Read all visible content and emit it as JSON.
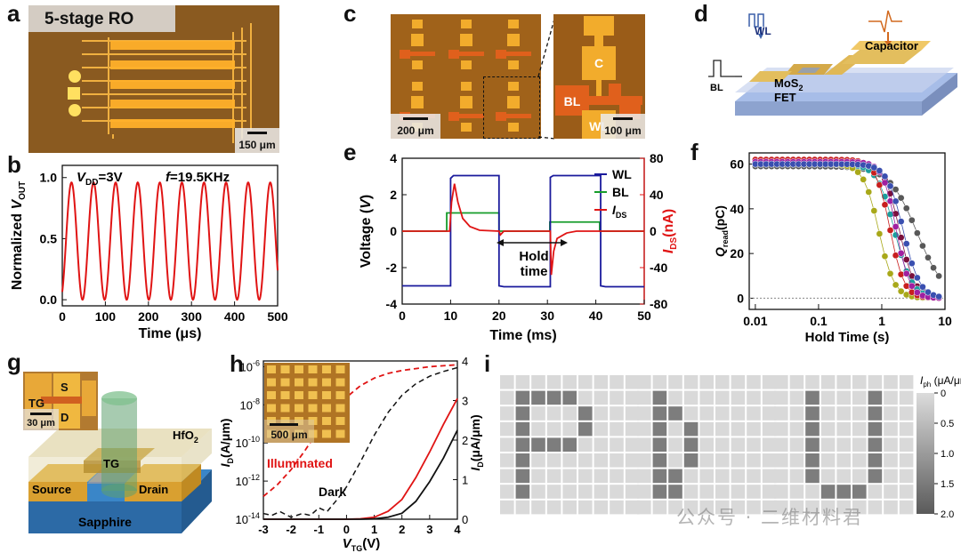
{
  "panels": {
    "a": {
      "label": "a",
      "title": "5-stage RO",
      "scale": "150 μm"
    },
    "b": {
      "label": "b",
      "vdd_text": "=3V",
      "vdd_sym": "V",
      "vdd_sub": "DD",
      "freq_sym": "f",
      "freq_text": "=19.5KHz"
    },
    "c": {
      "label": "c",
      "scale_left": "200 μm",
      "scale_right": "100 μm",
      "pad_c": "C",
      "pad_bl": "BL",
      "pad_wl": "WL"
    },
    "d": {
      "label": "d",
      "wl": "WL",
      "bl": "BL",
      "capacitor": "Capacitor",
      "fet_line1": "MoS",
      "fet_sub": "2",
      "fet_line2": "FET"
    },
    "e": {
      "label": "e",
      "hold_line1": "Hold",
      "hold_line2": "time"
    },
    "f": {
      "label": "f"
    },
    "g": {
      "label": "g",
      "tg": "TG",
      "s": "S",
      "d": "D",
      "scale": "30 μm",
      "hfo2": "HfO",
      "hfo2_sub": "2",
      "tg3d": "TG",
      "source": "Source",
      "drain": "Drain",
      "sapphire": "Sapphire"
    },
    "h": {
      "label": "h",
      "scale": "500 μm",
      "illuminated": "Illuminated",
      "dark": "Dark"
    },
    "i": {
      "label": "i"
    }
  },
  "watermark": "公众号 · 二维材料君",
  "chart_data": [
    {
      "id": "b",
      "type": "line",
      "xlabel": "Time (μs)",
      "ylabel": "Normalized V_OUT",
      "xlim": [
        0,
        500
      ],
      "ylim": [
        -0.05,
        1.1
      ],
      "xticks": [
        0,
        100,
        200,
        300,
        400,
        500
      ],
      "yticks": [
        0.0,
        0.5,
        1.0
      ],
      "ytick_labels": [
        "0.0",
        "0.5",
        "1.0"
      ],
      "series": [
        {
          "color": "#e01414",
          "function": "sine",
          "frequency_khz": 19.5,
          "min": 0.0,
          "max": 0.96,
          "phase_deg": -60
        }
      ]
    },
    {
      "id": "e",
      "type": "line",
      "xlabel": "Time (ms)",
      "ylabel": "Voltage (V)",
      "y2label": "I_DS(nA)",
      "xlim": [
        0,
        50
      ],
      "ylim": [
        -4,
        4
      ],
      "y2lim": [
        -80,
        80
      ],
      "xticks": [
        0,
        10,
        20,
        30,
        40,
        50
      ],
      "yticks": [
        -4,
        -2,
        0,
        2,
        4
      ],
      "y2ticks": [
        -80,
        -40,
        0,
        40,
        80
      ],
      "legend": [
        "WL",
        "BL",
        "I_DS"
      ],
      "legend_position": "top-right",
      "series": [
        {
          "name": "WL",
          "color": "#1a1a9c",
          "x": [
            0,
            10,
            10,
            10.6,
            20,
            20,
            21,
            30.6,
            30.6,
            31.2,
            41,
            41,
            42,
            50
          ],
          "y": [
            -3,
            -3,
            2.9,
            3.05,
            3.05,
            -3,
            -3.05,
            -3.05,
            2.95,
            3.05,
            3.05,
            -3,
            -3.05,
            -3.05
          ]
        },
        {
          "name": "BL",
          "color": "#169c2a",
          "x": [
            0,
            9.2,
            9.2,
            20,
            20,
            30.5,
            30.5,
            40.8,
            40.8,
            50
          ],
          "y": [
            0,
            0,
            1,
            1,
            0,
            0,
            0.5,
            0.5,
            0,
            0
          ]
        },
        {
          "name": "I_DS",
          "color": "#e01414",
          "axis": "y2",
          "x": [
            0,
            9.8,
            10.2,
            10.8,
            11.5,
            12.5,
            14,
            16,
            20,
            20.3,
            21,
            30.5,
            30.6,
            30.8,
            31.3,
            32,
            34,
            36,
            50
          ],
          "y": [
            0,
            0,
            32,
            52,
            32,
            14,
            5,
            1,
            0,
            -4,
            0,
            0,
            0,
            -48,
            -22,
            -8,
            -2,
            0,
            0
          ]
        }
      ]
    },
    {
      "id": "f",
      "type": "scatter",
      "xscale": "log",
      "xlabel": "Hold  Time (s)",
      "ylabel": "Q_read(pC)",
      "xlim": [
        0.008,
        10
      ],
      "ylim": [
        -5,
        65
      ],
      "xticks": [
        0.01,
        0.1,
        1,
        10
      ],
      "xtick_labels": [
        "0.01",
        "0.1",
        "1",
        "10"
      ],
      "yticks": [
        0,
        20,
        40,
        60
      ],
      "series": [
        {
          "color": "#585858",
          "t50": 3.6,
          "n": 2.0,
          "q0": 59
        },
        {
          "color": "#7a0f3c",
          "t50": 1.9,
          "n": 3.6,
          "q0": 61
        },
        {
          "color": "#1b9e9e",
          "t50": 1.6,
          "n": 3.2,
          "q0": 60
        },
        {
          "color": "#a8a819",
          "t50": 0.9,
          "n": 3.6,
          "q0": 60
        },
        {
          "color": "#c81e1e",
          "t50": 1.35,
          "n": 3.9,
          "q0": 62
        },
        {
          "color": "#a01fa0",
          "t50": 1.7,
          "n": 4.1,
          "q0": 61
        },
        {
          "color": "#3a4fb0",
          "t50": 2.2,
          "n": 3.4,
          "q0": 60
        }
      ]
    },
    {
      "id": "h",
      "type": "line",
      "xlabel": "V_TG(V)",
      "ylabel": "I_D(A/μm)",
      "y2label": "I_D(μA/μm)",
      "xlim": [
        -3,
        4
      ],
      "xticks": [
        -3,
        -2,
        -1,
        0,
        1,
        2,
        3,
        4
      ],
      "ylim_log": [
        -14,
        -5.7
      ],
      "ytick_labels": [
        "10^-14",
        "10^-12",
        "10^-10",
        "10^-8",
        "10^-6"
      ],
      "y2lim": [
        0,
        4
      ],
      "y2ticks": [
        0,
        1,
        2,
        3,
        4
      ],
      "series": [
        {
          "name": "Illuminated",
          "color": "#e01414",
          "style": "dashed",
          "axis": "log",
          "x": [
            -3,
            -2.5,
            -2,
            -1.5,
            -1,
            -0.5,
            0,
            0.5,
            1,
            1.5,
            2,
            2.5,
            3,
            3.5,
            4
          ],
          "y": [
            -12.8,
            -12.2,
            -11.4,
            -10.4,
            -9.3,
            -8.3,
            -7.6,
            -7.0,
            -6.6,
            -6.35,
            -6.2,
            -6.1,
            -6.0,
            -5.95,
            -5.9
          ]
        },
        {
          "name": "Dark",
          "color": "#111111",
          "style": "dashed",
          "axis": "log",
          "x": [
            -3,
            -2.7,
            -2.4,
            -2,
            -1.6,
            -1.3,
            -1,
            -0.7,
            -0.3,
            0,
            0.5,
            1,
            1.5,
            2,
            2.5,
            3,
            3.5,
            4
          ],
          "y": [
            -13.7,
            -13.8,
            -13.6,
            -13.9,
            -13.7,
            -13.8,
            -13.4,
            -13.6,
            -12.9,
            -12.3,
            -11.0,
            -9.6,
            -8.4,
            -7.5,
            -6.9,
            -6.5,
            -6.25,
            -6.05
          ]
        },
        {
          "name": "Illuminated",
          "color": "#e01414",
          "style": "solid",
          "axis": "linear",
          "x": [
            -3,
            0,
            0.5,
            1,
            1.5,
            2,
            2.5,
            3,
            3.5,
            4
          ],
          "y": [
            0,
            0,
            0.01,
            0.05,
            0.2,
            0.5,
            1.05,
            1.7,
            2.4,
            3.05
          ]
        },
        {
          "name": "Dark",
          "color": "#111111",
          "style": "solid",
          "axis": "linear",
          "x": [
            -3,
            0.5,
            1,
            1.5,
            2,
            2.5,
            3,
            3.5,
            4
          ],
          "y": [
            0,
            0,
            0.01,
            0.05,
            0.15,
            0.45,
            0.95,
            1.55,
            2.25
          ]
        }
      ]
    },
    {
      "id": "i",
      "type": "heatmap",
      "colorbar_label": "I_ph (μA/μm)",
      "colorbar_ticks": [
        "0",
        "0.5",
        "1.0",
        "1.5",
        "2.0"
      ],
      "rows": 9,
      "cols": 9,
      "grids": [
        {
          "letter": "P",
          "cells": [
            [
              1,
              1
            ],
            [
              1,
              2
            ],
            [
              1,
              3
            ],
            [
              1,
              4
            ],
            [
              2,
              1
            ],
            [
              2,
              5
            ],
            [
              3,
              1
            ],
            [
              3,
              5
            ],
            [
              4,
              1
            ],
            [
              4,
              2
            ],
            [
              4,
              3
            ],
            [
              4,
              4
            ],
            [
              5,
              1
            ],
            [
              6,
              1
            ],
            [
              7,
              1
            ]
          ]
        },
        {
          "letter": "D",
          "cells": [
            [
              1,
              1
            ],
            [
              2,
              1
            ],
            [
              2,
              2
            ],
            [
              3,
              1
            ],
            [
              3,
              3
            ],
            [
              4,
              1
            ],
            [
              4,
              3
            ],
            [
              5,
              1
            ],
            [
              5,
              3
            ],
            [
              6,
              1
            ],
            [
              6,
              2
            ],
            [
              7,
              1
            ],
            [
              7,
              2
            ]
          ]
        },
        {
          "letter": "U",
          "cells": [
            [
              1,
              2
            ],
            [
              1,
              6
            ],
            [
              2,
              2
            ],
            [
              2,
              6
            ],
            [
              3,
              2
            ],
            [
              3,
              6
            ],
            [
              4,
              2
            ],
            [
              4,
              6
            ],
            [
              5,
              2
            ],
            [
              5,
              6
            ],
            [
              6,
              2
            ],
            [
              6,
              6
            ],
            [
              7,
              3
            ],
            [
              7,
              4
            ],
            [
              7,
              5
            ]
          ]
        }
      ]
    }
  ]
}
